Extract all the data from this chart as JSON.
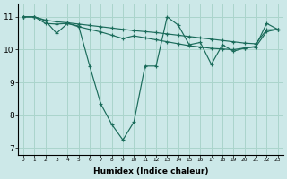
{
  "xlabel": "Humidex (Indice chaleur)",
  "xlim": [
    -0.5,
    23.5
  ],
  "ylim": [
    6.8,
    11.4
  ],
  "xticks": [
    0,
    1,
    2,
    3,
    4,
    5,
    6,
    7,
    8,
    9,
    10,
    11,
    12,
    13,
    14,
    15,
    16,
    17,
    18,
    19,
    20,
    21,
    22,
    23
  ],
  "yticks": [
    7,
    8,
    9,
    10,
    11
  ],
  "background_color": "#cce8e8",
  "grid_color": "#aad4cc",
  "line_color": "#1a6b5a",
  "lines": [
    {
      "x": [
        0,
        1,
        2,
        3,
        4,
        5,
        6,
        7,
        8,
        9,
        10,
        11,
        12,
        13,
        14,
        15,
        16,
        17,
        18,
        19,
        20,
        21,
        22,
        23
      ],
      "y": [
        11.0,
        11.0,
        10.9,
        10.85,
        10.82,
        10.78,
        10.74,
        10.7,
        10.66,
        10.62,
        10.58,
        10.55,
        10.52,
        10.48,
        10.44,
        10.4,
        10.36,
        10.32,
        10.28,
        10.24,
        10.2,
        10.18,
        10.6,
        10.62
      ]
    },
    {
      "x": [
        0,
        1,
        2,
        3,
        4,
        5,
        6,
        7,
        8,
        9,
        10,
        11,
        12,
        13,
        14,
        15,
        16,
        17,
        18,
        19,
        20,
        21,
        22,
        23
      ],
      "y": [
        11.0,
        11.0,
        10.8,
        10.78,
        10.8,
        10.7,
        10.62,
        10.54,
        10.44,
        10.34,
        10.42,
        10.36,
        10.3,
        10.24,
        10.18,
        10.12,
        10.08,
        10.04,
        10.02,
        10.0,
        10.05,
        10.08,
        10.55,
        10.62
      ]
    },
    {
      "x": [
        0,
        1,
        2,
        3,
        4,
        5,
        6,
        7,
        8,
        9,
        10,
        11,
        12,
        13,
        14,
        15,
        16,
        17,
        18,
        19,
        20,
        21,
        22,
        23
      ],
      "y": [
        11.0,
        11.0,
        10.88,
        10.5,
        10.8,
        10.72,
        9.5,
        8.35,
        7.72,
        7.25,
        7.8,
        9.5,
        9.5,
        11.0,
        10.75,
        10.15,
        10.22,
        9.55,
        10.15,
        9.95,
        10.05,
        10.1,
        10.8,
        10.62
      ]
    }
  ]
}
